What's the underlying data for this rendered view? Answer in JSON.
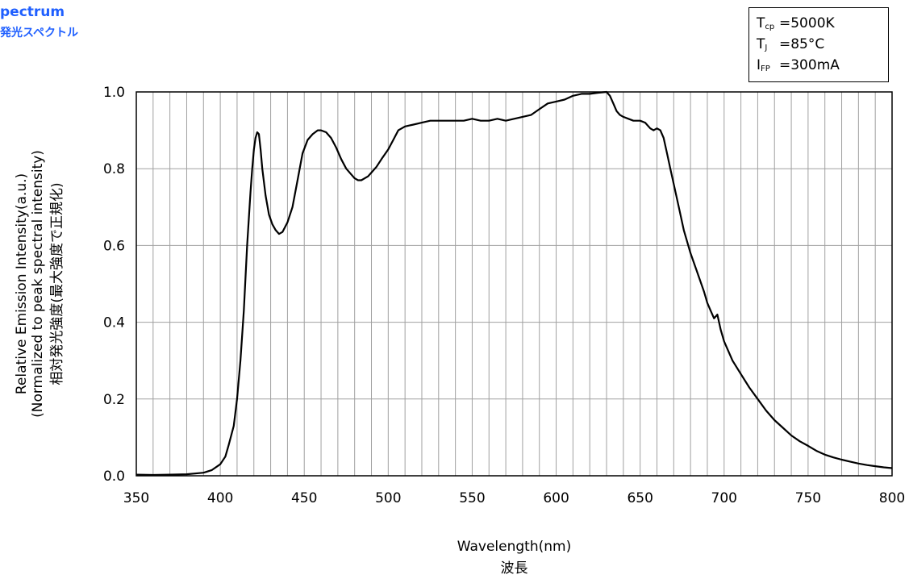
{
  "title": {
    "en": "pectrum",
    "ja": "発光スペクトル"
  },
  "conditions": [
    {
      "symbol": "T",
      "subscript": "cp",
      "value": "=5000K"
    },
    {
      "symbol": "T",
      "subscript": "J",
      "value": "=85°C"
    },
    {
      "symbol": "I",
      "subscript": "FP",
      "value": "=300mA"
    }
  ],
  "chart_data": {
    "type": "line",
    "xlabel": "Wavelength(nm)",
    "xlabel_ja": "波長",
    "ylabel_lines": [
      "Relative Emission Intensity(a.u.)",
      "(Normalized to peak spectral intensity)",
      "相対発光強度(最大強度で正規化)"
    ],
    "xlim": [
      350,
      800
    ],
    "ylim": [
      0,
      1.0
    ],
    "x_ticks": [
      350,
      400,
      450,
      500,
      550,
      600,
      650,
      700,
      750,
      800
    ],
    "x_tick_labels": [
      "350",
      "400",
      "450",
      "500",
      "550",
      "600",
      "650",
      "700",
      "750",
      "800"
    ],
    "y_ticks": [
      0,
      0.2,
      0.4,
      0.6,
      0.8,
      1.0
    ],
    "y_tick_labels": [
      "0.0",
      "0.2",
      "0.4",
      "0.6",
      "0.8",
      "1.0"
    ],
    "x_minor_grid_step": 10,
    "grid": true,
    "line_color": "#000000",
    "series": [
      {
        "x": [
          350,
          360,
          370,
          380,
          390,
          395,
          400,
          403,
          405,
          408,
          410,
          412,
          414,
          416,
          418,
          419,
          420,
          421,
          422,
          423,
          424,
          425,
          427,
          429,
          431,
          433,
          435,
          437,
          440,
          443,
          446,
          449,
          452,
          455,
          458,
          460,
          463,
          466,
          469,
          472,
          475,
          478,
          480,
          482,
          484,
          486,
          488,
          490,
          493,
          496,
          500,
          503,
          506,
          510,
          515,
          520,
          525,
          530,
          535,
          540,
          545,
          550,
          555,
          560,
          565,
          570,
          575,
          580,
          585,
          590,
          595,
          600,
          605,
          610,
          615,
          620,
          625,
          630,
          632,
          634,
          636,
          638,
          640,
          643,
          646,
          650,
          653,
          656,
          658,
          660,
          662,
          664,
          666,
          668,
          670,
          673,
          676,
          680,
          684,
          688,
          690,
          692,
          694,
          696,
          698,
          700,
          705,
          710,
          715,
          720,
          725,
          730,
          735,
          740,
          745,
          750,
          755,
          760,
          765,
          770,
          775,
          780,
          785,
          790,
          795,
          800
        ],
        "y": [
          0.003,
          0.002,
          0.003,
          0.004,
          0.008,
          0.015,
          0.03,
          0.05,
          0.08,
          0.13,
          0.2,
          0.3,
          0.43,
          0.6,
          0.74,
          0.8,
          0.85,
          0.88,
          0.895,
          0.89,
          0.85,
          0.8,
          0.73,
          0.68,
          0.655,
          0.64,
          0.63,
          0.635,
          0.66,
          0.7,
          0.77,
          0.84,
          0.875,
          0.89,
          0.9,
          0.9,
          0.895,
          0.88,
          0.855,
          0.825,
          0.8,
          0.785,
          0.775,
          0.77,
          0.77,
          0.775,
          0.78,
          0.79,
          0.805,
          0.825,
          0.85,
          0.875,
          0.9,
          0.91,
          0.915,
          0.92,
          0.925,
          0.925,
          0.925,
          0.925,
          0.925,
          0.93,
          0.925,
          0.925,
          0.93,
          0.925,
          0.93,
          0.935,
          0.94,
          0.955,
          0.97,
          0.975,
          0.98,
          0.99,
          0.995,
          0.995,
          0.998,
          1.0,
          0.99,
          0.97,
          0.95,
          0.94,
          0.935,
          0.93,
          0.925,
          0.925,
          0.92,
          0.905,
          0.9,
          0.905,
          0.9,
          0.88,
          0.84,
          0.8,
          0.76,
          0.7,
          0.64,
          0.58,
          0.53,
          0.48,
          0.45,
          0.43,
          0.41,
          0.42,
          0.38,
          0.35,
          0.3,
          0.265,
          0.23,
          0.2,
          0.17,
          0.145,
          0.125,
          0.105,
          0.09,
          0.078,
          0.065,
          0.055,
          0.048,
          0.042,
          0.037,
          0.032,
          0.028,
          0.025,
          0.022,
          0.02
        ]
      }
    ]
  }
}
